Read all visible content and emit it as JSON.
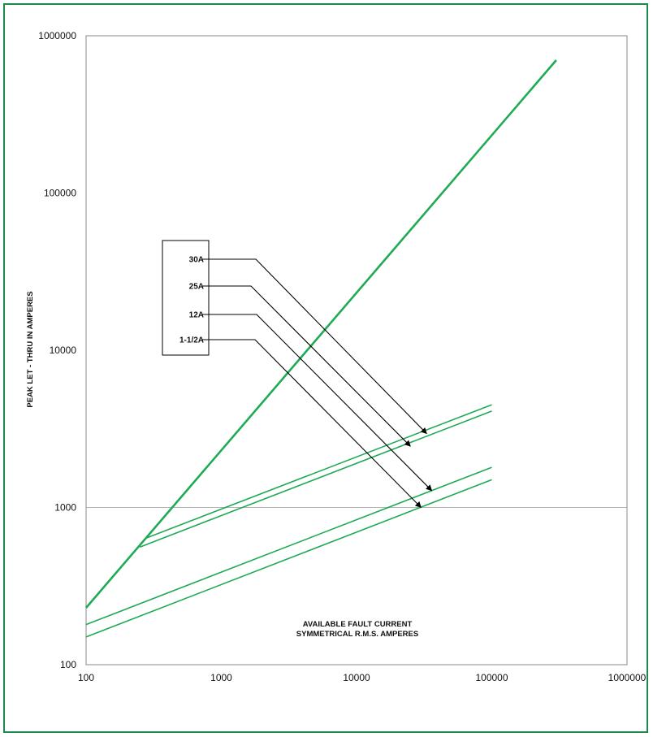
{
  "chart_data": {
    "type": "line",
    "title": "",
    "xlabel": [
      "AVAILABLE FAULT CURRENT",
      "SYMMETRICAL  R.M.S.  AMPERES"
    ],
    "ylabel": "PEAK LET - THRU IN AMPERES",
    "x_scale": "log",
    "y_scale": "log",
    "xlim": [
      100,
      1000000
    ],
    "ylim": [
      100,
      1000000
    ],
    "x_ticks": [
      "100",
      "1000",
      "10000",
      "100000",
      "1000000"
    ],
    "y_ticks": [
      "100",
      "1000",
      "10000",
      "100000",
      "1000000"
    ],
    "grid": "horizontal line at 1000",
    "colors": {
      "series": "#1faa55",
      "frame": "#1a8a4a",
      "arrow": "#000000",
      "grid": "#999999"
    },
    "series": [
      {
        "x": [
          100,
          300000
        ],
        "y": [
          230,
          700000
        ]
      },
      {
        "x": [
          280,
          100000
        ],
        "y": [
          640,
          4500
        ]
      },
      {
        "x": [
          250,
          100000
        ],
        "y": [
          560,
          4100
        ]
      },
      {
        "x": [
          100,
          100000
        ],
        "y": [
          180,
          1800
        ]
      },
      {
        "x": [
          100,
          100000
        ],
        "y": [
          150,
          1500
        ]
      }
    ],
    "legend": {
      "placement": "left-center",
      "entries": [
        {
          "label": "30A",
          "target_x": 33000,
          "target_y": 2950
        },
        {
          "label": "25A",
          "target_x": 25000,
          "target_y": 2450
        },
        {
          "label": "12A",
          "target_x": 36000,
          "target_y": 1280
        },
        {
          "label": "1-1/2A",
          "target_x": 30000,
          "target_y": 1000
        }
      ]
    }
  }
}
